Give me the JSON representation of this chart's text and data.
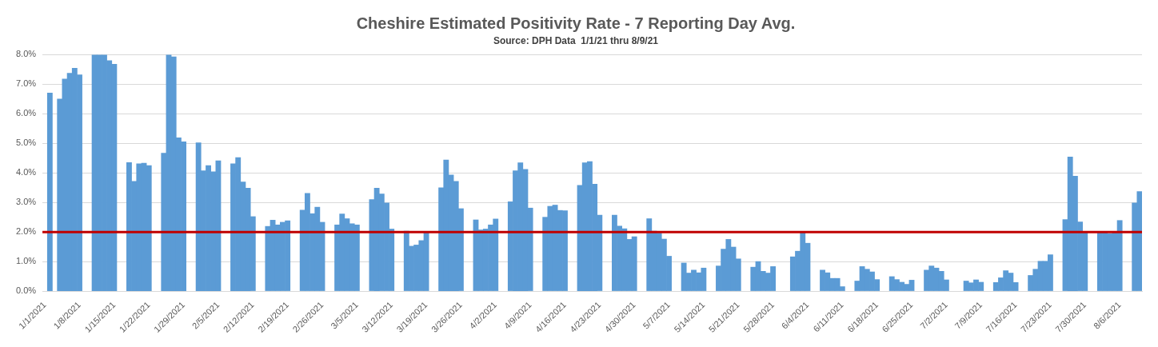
{
  "chart_data": {
    "type": "bar",
    "title": "Cheshire Estimated Positivity Rate - 7 Reporting Day Avg.",
    "subtitle": "Source: DPH Data  1/1/21 thru 8/9/21",
    "categories": [
      "1/1/2021",
      null,
      null,
      null,
      null,
      null,
      null,
      "1/8/2021",
      null,
      null,
      null,
      null,
      null,
      null,
      "1/15/2021",
      null,
      null,
      null,
      null,
      null,
      null,
      "1/22/2021",
      null,
      null,
      null,
      null,
      null,
      null,
      "1/29/2021",
      null,
      null,
      null,
      null,
      null,
      null,
      "2/5/2021",
      null,
      null,
      null,
      null,
      null,
      null,
      "2/12/2021",
      null,
      null,
      null,
      null,
      null,
      null,
      "2/19/2021",
      null,
      null,
      null,
      null,
      null,
      null,
      "2/26/2021",
      null,
      null,
      null,
      null,
      null,
      null,
      "3/5/2021",
      null,
      null,
      null,
      null,
      null,
      null,
      "3/12/2021",
      null,
      null,
      null,
      null,
      null,
      null,
      "3/19/2021",
      null,
      null,
      null,
      null,
      null,
      null,
      "3/26/2021",
      null,
      null,
      null,
      null,
      null,
      null,
      "4/2/2021",
      null,
      null,
      null,
      null,
      null,
      null,
      "4/9/2021",
      null,
      null,
      null,
      null,
      null,
      null,
      "4/16/2021",
      null,
      null,
      null,
      null,
      null,
      null,
      "4/23/2021",
      null,
      null,
      null,
      null,
      null,
      null,
      "4/30/2021",
      null,
      null,
      null,
      null,
      null,
      null,
      "5/7/2021",
      null,
      null,
      null,
      null,
      null,
      null,
      "5/14/2021",
      null,
      null,
      null,
      null,
      null,
      null,
      "5/21/2021",
      null,
      null,
      null,
      null,
      null,
      null,
      "5/28/2021",
      null,
      null,
      null,
      null,
      null,
      null,
      "6/4/2021",
      null,
      null,
      null,
      null,
      null,
      null,
      "6/11/2021",
      null,
      null,
      null,
      null,
      null,
      null,
      "6/18/2021",
      null,
      null,
      null,
      null,
      null,
      null,
      "6/25/2021",
      null,
      null,
      null,
      null,
      null,
      null,
      "7/2/2021",
      null,
      null,
      null,
      null,
      null,
      null,
      "7/9/2021",
      null,
      null,
      null,
      null,
      null,
      null,
      "7/16/2021",
      null,
      null,
      null,
      null,
      null,
      null,
      "7/23/2021",
      null,
      null,
      null,
      null,
      null,
      null,
      "7/30/2021",
      null,
      null,
      null,
      null,
      null,
      null,
      "8/6/2021",
      null,
      null,
      null,
      null
    ],
    "values": [
      null,
      6.7,
      null,
      6.5,
      7.18,
      7.37,
      7.54,
      7.32,
      null,
      null,
      8.0,
      8.0,
      8.0,
      7.8,
      7.68,
      null,
      null,
      4.35,
      3.71,
      4.31,
      4.33,
      4.25,
      null,
      null,
      4.67,
      8.0,
      7.93,
      5.19,
      5.05,
      null,
      null,
      5.02,
      4.07,
      4.25,
      4.04,
      4.41,
      null,
      null,
      4.31,
      4.52,
      3.69,
      3.48,
      2.52,
      null,
      null,
      2.19,
      2.4,
      2.24,
      2.33,
      2.38,
      null,
      null,
      2.74,
      3.31,
      2.62,
      2.84,
      2.33,
      null,
      null,
      2.24,
      2.61,
      2.45,
      2.28,
      2.24,
      null,
      null,
      3.1,
      3.48,
      3.29,
      2.98,
      2.1,
      null,
      null,
      2.03,
      1.52,
      1.56,
      1.71,
      1.99,
      null,
      null,
      3.5,
      4.44,
      3.93,
      3.71,
      2.79,
      null,
      null,
      2.41,
      2.07,
      2.1,
      2.24,
      2.44,
      null,
      null,
      3.02,
      4.07,
      4.34,
      4.12,
      2.81,
      null,
      null,
      2.5,
      2.87,
      2.91,
      2.73,
      2.72,
      null,
      null,
      3.58,
      4.34,
      4.38,
      3.62,
      2.57,
      null,
      null,
      2.57,
      2.2,
      2.11,
      1.75,
      1.84,
      null,
      null,
      2.45,
      2.03,
      1.96,
      1.76,
      1.18,
      null,
      null,
      0.95,
      0.61,
      0.71,
      0.62,
      0.78,
      null,
      null,
      0.85,
      1.42,
      1.75,
      1.49,
      1.09,
      null,
      null,
      0.81,
      1.0,
      0.67,
      0.61,
      0.83,
      null,
      null,
      null,
      1.16,
      1.35,
      2.0,
      1.62,
      null,
      null,
      0.71,
      0.62,
      0.43,
      0.43,
      0.15,
      null,
      null,
      0.34,
      0.83,
      0.74,
      0.65,
      0.39,
      null,
      null,
      0.49,
      0.39,
      0.3,
      0.23,
      0.37,
      null,
      null,
      0.71,
      0.85,
      0.78,
      0.67,
      0.38,
      null,
      null,
      null,
      0.34,
      0.28,
      0.38,
      0.3,
      null,
      null,
      0.29,
      0.45,
      0.69,
      0.61,
      0.29,
      null,
      null,
      0.53,
      0.74,
      1.01,
      1.01,
      1.23,
      null,
      null,
      2.42,
      4.54,
      3.89,
      2.34,
      1.99,
      null,
      null,
      1.99,
      1.99,
      1.94,
      1.99,
      2.39,
      null,
      null,
      2.98,
      3.37
    ],
    "color": "#5b9bd5",
    "ylim": [
      0,
      8
    ],
    "yticks": [
      {
        "value": 0,
        "label": "0.0%"
      },
      {
        "value": 1,
        "label": "1.0%"
      },
      {
        "value": 2,
        "label": "2.0%"
      },
      {
        "value": 3,
        "label": "3.0%"
      },
      {
        "value": 4,
        "label": "4.0%"
      },
      {
        "value": 5,
        "label": "5.0%"
      },
      {
        "value": 6,
        "label": "6.0%"
      },
      {
        "value": 7,
        "label": "7.0%"
      },
      {
        "value": 8,
        "label": "8.0%"
      }
    ],
    "ref_lines": [
      {
        "axis": "y",
        "value": 2.0,
        "color": "#c00000"
      }
    ],
    "grid": "y",
    "legend": false
  }
}
